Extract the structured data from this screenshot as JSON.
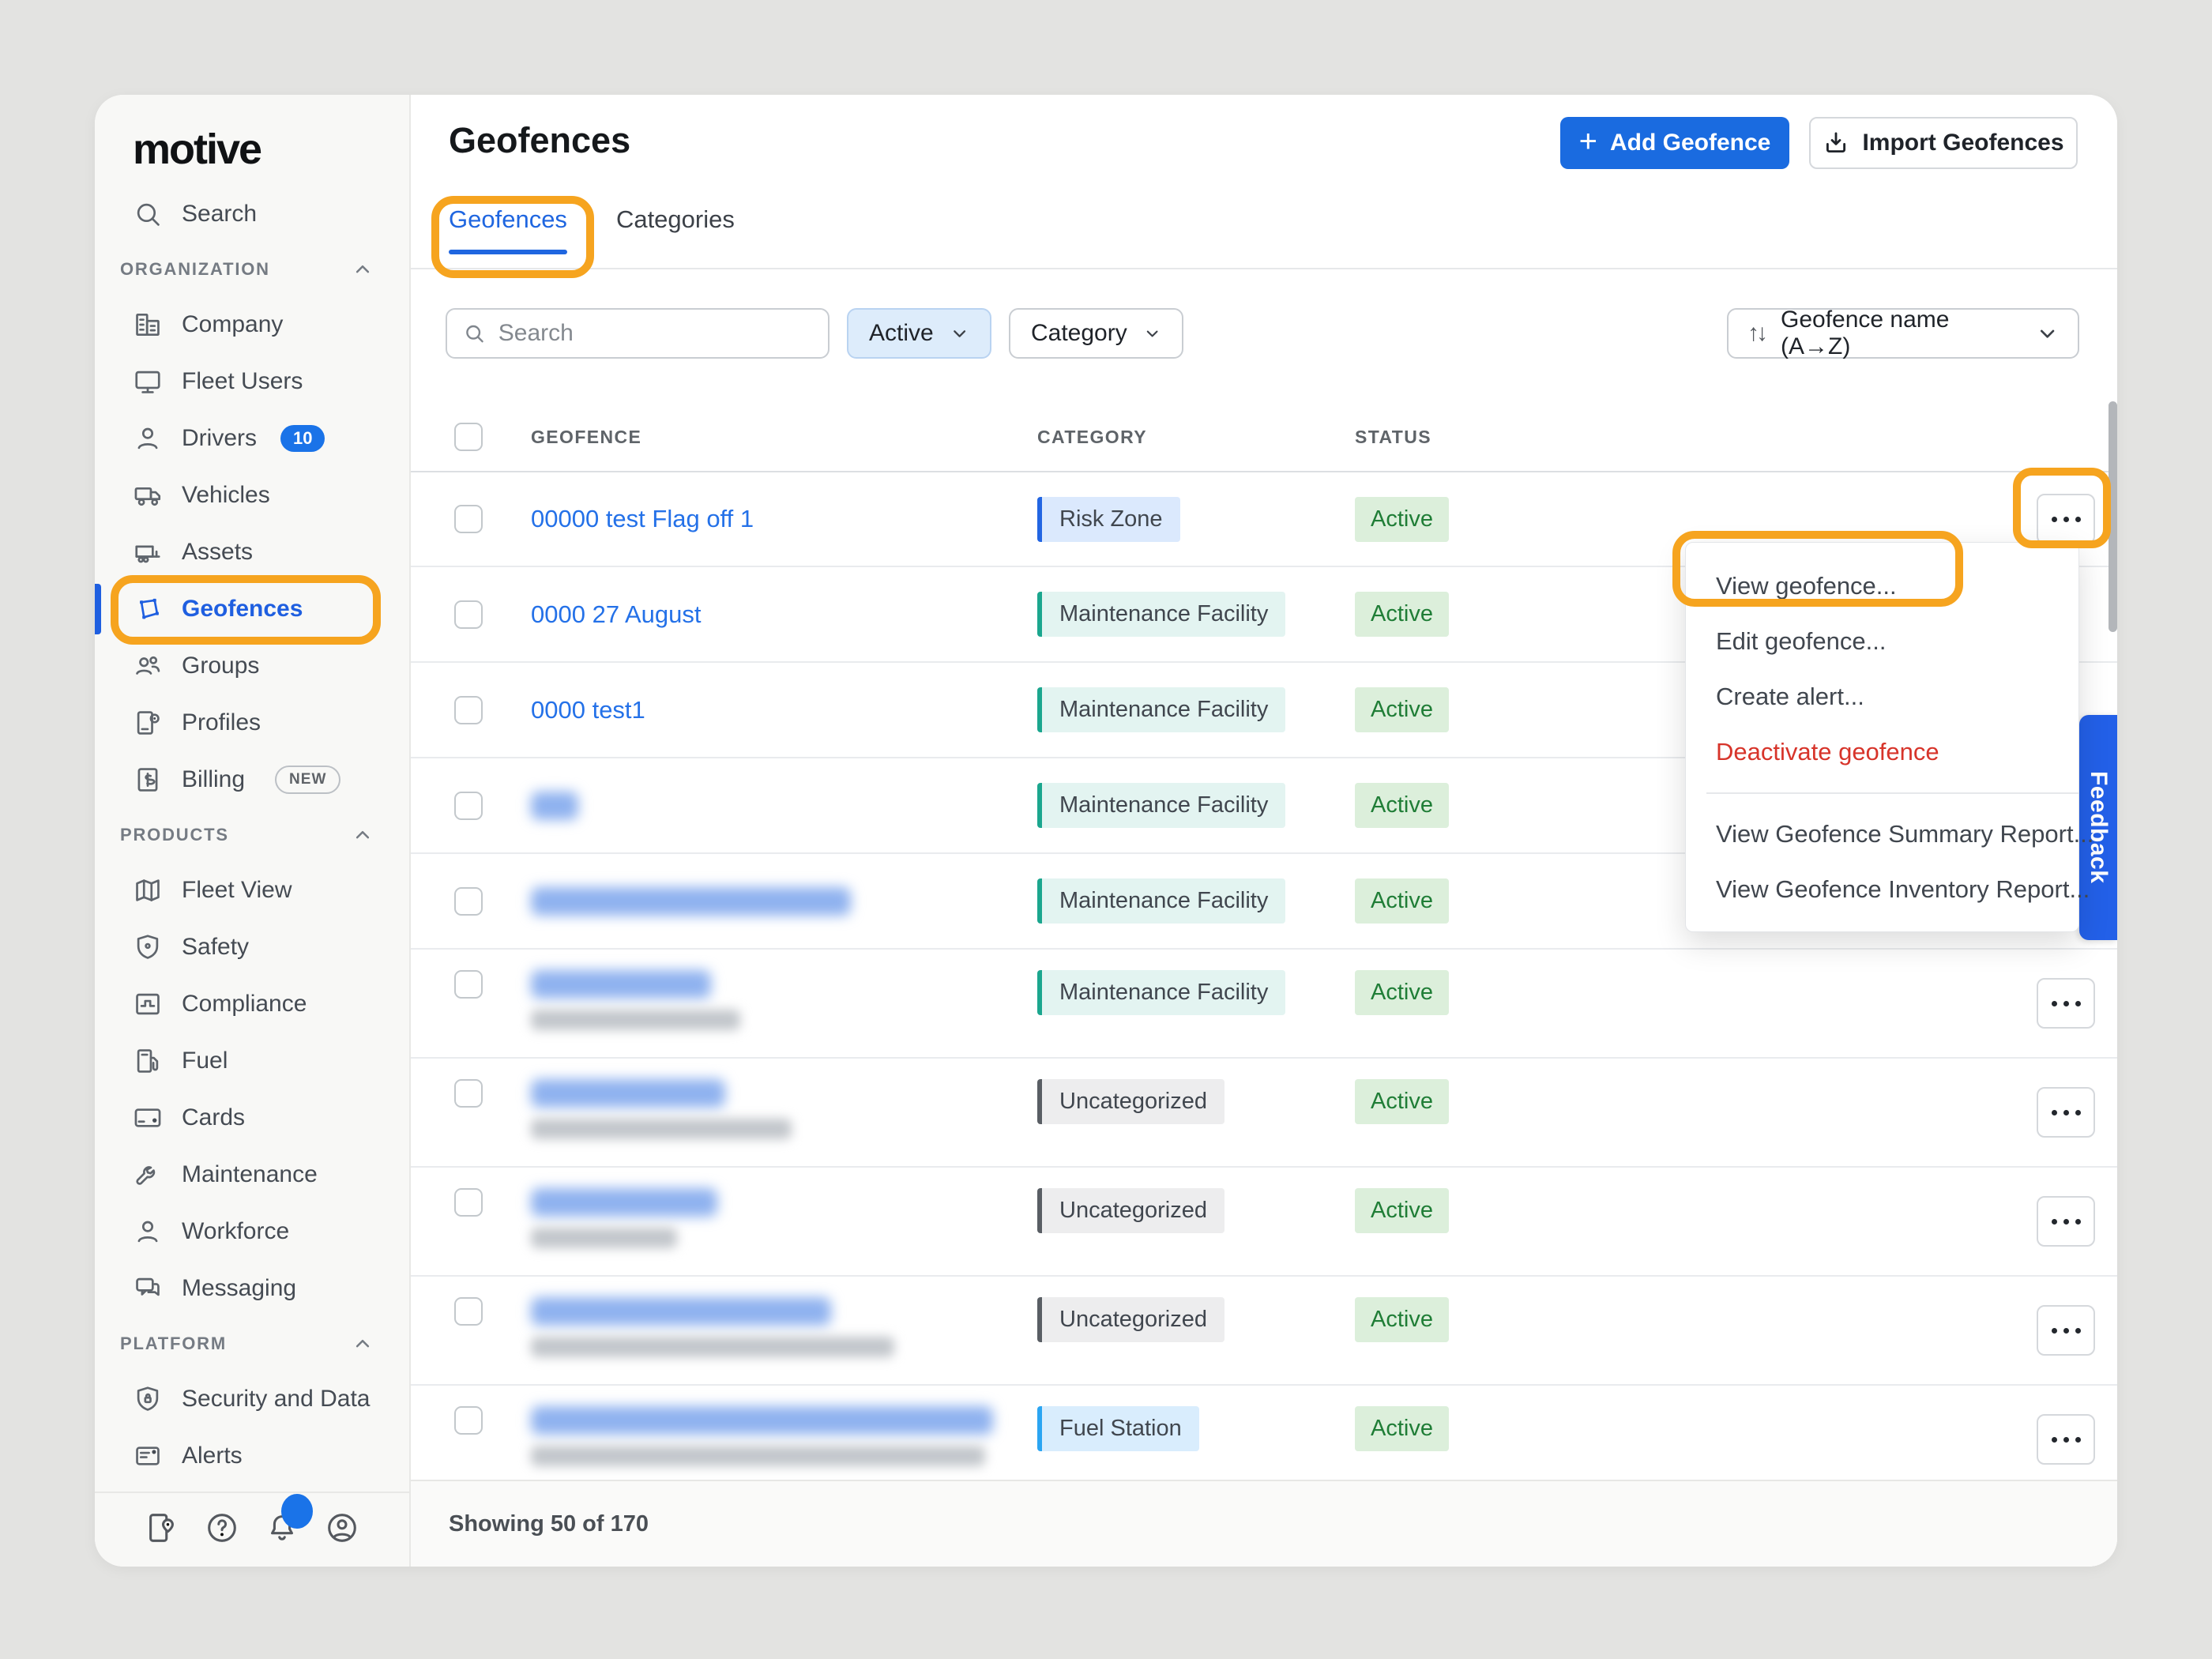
{
  "brand": {
    "logo_text": "motive"
  },
  "colors": {
    "accent_blue": "#1a6be0",
    "link_blue": "#2471e8",
    "highlight_orange": "#f6a41f",
    "active_green_bg": "#dcefdb",
    "active_green_text": "#1f7d36",
    "feedback_blue": "#2360e8"
  },
  "sidebar": {
    "search_item": {
      "icon": "search",
      "label": "Search"
    },
    "sections": [
      {
        "label": "ORGANIZATION",
        "items": [
          {
            "icon": "building",
            "label": "Company"
          },
          {
            "icon": "monitor",
            "label": "Fleet Users"
          },
          {
            "icon": "person",
            "label": "Drivers",
            "count_badge": "10"
          },
          {
            "icon": "truck",
            "label": "Vehicles"
          },
          {
            "icon": "trailer",
            "label": "Assets"
          },
          {
            "icon": "geofence",
            "label": "Geofences",
            "active": true
          },
          {
            "icon": "groups",
            "label": "Groups"
          },
          {
            "icon": "profiles",
            "label": "Profiles"
          },
          {
            "icon": "billing",
            "label": "Billing",
            "new_badge": "NEW"
          }
        ]
      },
      {
        "label": "PRODUCTS",
        "items": [
          {
            "icon": "map",
            "label": "Fleet View"
          },
          {
            "icon": "shield",
            "label": "Safety"
          },
          {
            "icon": "compliance",
            "label": "Compliance"
          },
          {
            "icon": "fuel",
            "label": "Fuel"
          },
          {
            "icon": "card",
            "label": "Cards"
          },
          {
            "icon": "wrench",
            "label": "Maintenance"
          },
          {
            "icon": "person",
            "label": "Workforce"
          },
          {
            "icon": "messaging",
            "label": "Messaging"
          }
        ]
      },
      {
        "label": "PLATFORM",
        "items": [
          {
            "icon": "shield-lock",
            "label": "Security and Data"
          },
          {
            "icon": "alerts",
            "label": "Alerts"
          }
        ]
      }
    ],
    "footer_icons": [
      "logbook",
      "help",
      "bell",
      "account"
    ]
  },
  "header": {
    "title": "Geofences",
    "add_button": "Add Geofence",
    "import_button": "Import Geofences"
  },
  "tabs": [
    {
      "label": "Geofences",
      "active": true
    },
    {
      "label": "Categories",
      "active": false
    }
  ],
  "filters": {
    "search_placeholder": "Search",
    "status_filter": "Active",
    "category_filter": "Category",
    "sort_label": "Geofence name (A→Z)"
  },
  "table": {
    "columns": [
      "GEOFENCE",
      "CATEGORY",
      "STATUS"
    ],
    "rows": [
      {
        "name": "00000 test Flag off 1",
        "category": "Risk Zone",
        "category_type": "risk",
        "status": "Active",
        "actions_visible": true,
        "actions_highlighted": true
      },
      {
        "name": "0000 27 August",
        "category": "Maintenance Facility",
        "category_type": "maintenance",
        "status": "Active",
        "actions_visible": false
      },
      {
        "name": "0000 test1",
        "category": "Maintenance Facility",
        "category_type": "maintenance",
        "status": "Active",
        "actions_visible": false
      },
      {
        "redacted": true,
        "name_blur_width": 60,
        "category": "Maintenance Facility",
        "category_type": "maintenance",
        "status": "Active",
        "actions_visible": false
      },
      {
        "redacted": true,
        "name_blur_width": 405,
        "category": "Maintenance Facility",
        "category_type": "maintenance",
        "status": "Active",
        "actions_visible": false
      },
      {
        "redacted": true,
        "name_blur_width": 228,
        "address_blur_width": 265,
        "category": "Maintenance Facility",
        "category_type": "maintenance",
        "status": "Active",
        "actions_visible": true
      },
      {
        "redacted": true,
        "name_blur_width": 246,
        "address_blur_width": 330,
        "category": "Uncategorized",
        "category_type": "uncategorized",
        "status": "Active",
        "actions_visible": true
      },
      {
        "redacted": true,
        "name_blur_width": 236,
        "address_blur_width": 185,
        "category": "Uncategorized",
        "category_type": "uncategorized",
        "status": "Active",
        "actions_visible": true
      },
      {
        "redacted": true,
        "name_blur_width": 380,
        "address_blur_width": 460,
        "category": "Uncategorized",
        "category_type": "uncategorized",
        "status": "Active",
        "actions_visible": true
      },
      {
        "redacted": true,
        "name_blur_width": 585,
        "address_blur_width": 575,
        "category": "Fuel Station",
        "category_type": "fuel",
        "status": "Active",
        "actions_visible": true
      }
    ]
  },
  "context_menu": {
    "items": [
      {
        "label": "View geofence...",
        "highlighted": true
      },
      {
        "label": "Edit geofence..."
      },
      {
        "label": "Create alert..."
      },
      {
        "label": "Deactivate geofence",
        "danger": true
      },
      {
        "divider": true
      },
      {
        "label": "View Geofence Summary Report..."
      },
      {
        "label": "View Geofence Inventory Report..."
      }
    ]
  },
  "footer": {
    "showing_text": "Showing 50 of 170"
  },
  "feedback_tab": {
    "label": "Feedback"
  }
}
